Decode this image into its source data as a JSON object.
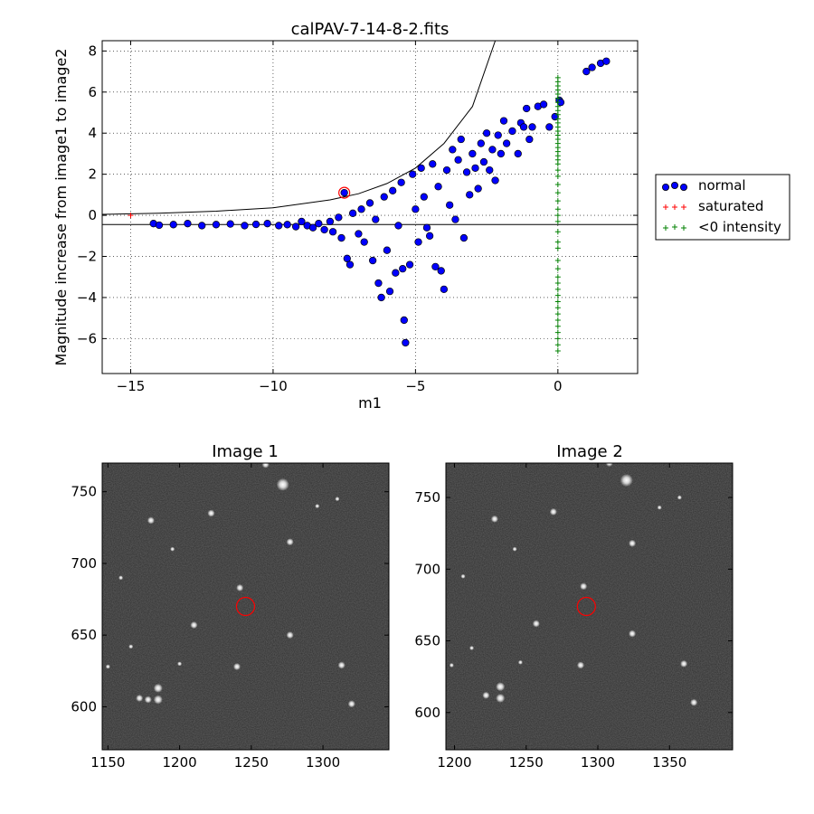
{
  "chart_data": [
    {
      "type": "scatter",
      "title": "calPAV-7-14-8-2.fits",
      "xlabel": "m1",
      "ylabel": "Magnitude increase from image1 to image2",
      "xlim": [
        -16,
        2.8
      ],
      "ylim": [
        -7.7,
        8.5
      ],
      "xticks": [
        -15,
        -10,
        -5,
        0
      ],
      "xtick_labels": [
        "−15",
        "−10",
        "−5",
        "0"
      ],
      "yticks": [
        -6,
        -4,
        -2,
        0,
        2,
        4,
        6,
        8
      ],
      "ytick_labels": [
        "−6",
        "−4",
        "−2",
        "0",
        "2",
        "4",
        "6",
        "8"
      ],
      "grid": true,
      "legend": {
        "placement": "outside-right",
        "entries": [
          "normal",
          "saturated",
          "<0 intensity"
        ]
      },
      "colors": {
        "normal": "#0000ff",
        "saturated": "#ff0000",
        "negative": "#008000",
        "highlight": "#ff0000"
      },
      "reference_lines": {
        "horizontal_y": -0.45,
        "curve_points": [
          [
            -16,
            0.05
          ],
          [
            -14,
            0.1
          ],
          [
            -12,
            0.2
          ],
          [
            -10,
            0.37
          ],
          [
            -8,
            0.75
          ],
          [
            -7,
            1.05
          ],
          [
            -6,
            1.55
          ],
          [
            -5,
            2.3
          ],
          [
            -4,
            3.5
          ],
          [
            -3,
            5.3
          ],
          [
            -2.2,
            8.5
          ]
        ]
      },
      "series": [
        {
          "name": "normal",
          "marker": "circle",
          "points": [
            [
              -14.2,
              -0.4
            ],
            [
              -14.0,
              -0.48
            ],
            [
              -13.5,
              -0.45
            ],
            [
              -13.0,
              -0.4
            ],
            [
              -12.5,
              -0.5
            ],
            [
              -12.0,
              -0.45
            ],
            [
              -11.5,
              -0.42
            ],
            [
              -11.0,
              -0.5
            ],
            [
              -10.6,
              -0.44
            ],
            [
              -10.2,
              -0.4
            ],
            [
              -9.8,
              -0.5
            ],
            [
              -9.5,
              -0.45
            ],
            [
              -9.2,
              -0.55
            ],
            [
              -9.0,
              -0.3
            ],
            [
              -8.8,
              -0.5
            ],
            [
              -8.6,
              -0.6
            ],
            [
              -8.4,
              -0.4
            ],
            [
              -8.2,
              -0.7
            ],
            [
              -8.0,
              -0.3
            ],
            [
              -7.9,
              -0.8
            ],
            [
              -7.7,
              -0.1
            ],
            [
              -7.6,
              -1.1
            ],
            [
              -7.5,
              1.1
            ],
            [
              -7.4,
              -2.1
            ],
            [
              -7.3,
              -2.4
            ],
            [
              -7.2,
              0.1
            ],
            [
              -7.0,
              -0.9
            ],
            [
              -6.9,
              0.3
            ],
            [
              -6.8,
              -1.3
            ],
            [
              -6.6,
              0.6
            ],
            [
              -6.5,
              -2.2
            ],
            [
              -6.4,
              -0.2
            ],
            [
              -6.3,
              -3.3
            ],
            [
              -6.2,
              -4.0
            ],
            [
              -6.1,
              0.9
            ],
            [
              -6.0,
              -1.7
            ],
            [
              -5.9,
              -3.7
            ],
            [
              -5.8,
              1.2
            ],
            [
              -5.7,
              -2.8
            ],
            [
              -5.6,
              -0.5
            ],
            [
              -5.5,
              1.6
            ],
            [
              -5.45,
              -2.6
            ],
            [
              -5.4,
              -5.1
            ],
            [
              -5.35,
              -6.2
            ],
            [
              -5.2,
              -2.4
            ],
            [
              -5.1,
              2.0
            ],
            [
              -5.0,
              0.3
            ],
            [
              -4.9,
              -1.3
            ],
            [
              -4.8,
              2.3
            ],
            [
              -4.7,
              0.9
            ],
            [
              -4.6,
              -0.6
            ],
            [
              -4.5,
              -1.0
            ],
            [
              -4.4,
              2.5
            ],
            [
              -4.3,
              -2.5
            ],
            [
              -4.2,
              1.4
            ],
            [
              -4.0,
              -3.6
            ],
            [
              -4.1,
              -2.7
            ],
            [
              -3.9,
              2.2
            ],
            [
              -3.8,
              0.5
            ],
            [
              -3.7,
              3.2
            ],
            [
              -3.6,
              -0.2
            ],
            [
              -3.5,
              2.7
            ],
            [
              -3.4,
              3.7
            ],
            [
              -3.3,
              -1.1
            ],
            [
              -3.2,
              2.1
            ],
            [
              -3.1,
              1.0
            ],
            [
              -3.0,
              3.0
            ],
            [
              -2.9,
              2.3
            ],
            [
              -2.8,
              1.3
            ],
            [
              -2.7,
              3.5
            ],
            [
              -2.6,
              2.6
            ],
            [
              -2.5,
              4.0
            ],
            [
              -2.4,
              2.2
            ],
            [
              -2.3,
              3.2
            ],
            [
              -2.2,
              1.7
            ],
            [
              -2.1,
              3.9
            ],
            [
              -2.0,
              3.0
            ],
            [
              -1.9,
              4.6
            ],
            [
              -1.8,
              3.5
            ],
            [
              -1.6,
              4.1
            ],
            [
              -1.4,
              3.0
            ],
            [
              -1.3,
              4.5
            ],
            [
              -1.2,
              4.3
            ],
            [
              -1.1,
              5.2
            ],
            [
              -1.0,
              3.7
            ],
            [
              -0.9,
              4.3
            ],
            [
              -0.7,
              5.3
            ],
            [
              -0.5,
              5.4
            ],
            [
              -0.3,
              4.3
            ],
            [
              -0.1,
              4.8
            ],
            [
              0.05,
              5.6
            ],
            [
              0.1,
              5.5
            ],
            [
              1.0,
              7.0
            ],
            [
              1.2,
              7.2
            ],
            [
              1.5,
              7.4
            ],
            [
              1.7,
              7.5
            ]
          ]
        },
        {
          "name": "saturated",
          "marker": "plus",
          "points": [
            [
              -15.0,
              0.0
            ]
          ]
        },
        {
          "name": "<0 intensity",
          "marker": "plus",
          "x_value": 0,
          "y_values": [
            6.7,
            6.5,
            6.3,
            6.1,
            5.9,
            5.7,
            5.5,
            5.3,
            5.1,
            4.9,
            4.7,
            4.5,
            4.3,
            4.1,
            3.9,
            3.7,
            3.5,
            3.3,
            3.1,
            2.9,
            2.7,
            2.5,
            2.2,
            1.9,
            1.5,
            1.1,
            0.7,
            0.3,
            0.0,
            -0.3,
            -0.8,
            -1.3,
            -1.6,
            -2.2,
            -2.6,
            -3.0,
            -3.3,
            -3.6,
            -3.9,
            -4.2,
            -4.5,
            -4.8,
            -5.1,
            -5.4,
            -5.7,
            -6.0,
            -6.3,
            -6.6
          ]
        }
      ],
      "highlight": {
        "x": -7.5,
        "y": 1.1
      }
    },
    {
      "type": "image",
      "title": "Image 1",
      "xlim": [
        1146,
        1346
      ],
      "ylim": [
        570,
        770
      ],
      "xticks": [
        1150,
        1200,
        1250,
        1300
      ],
      "yticks": [
        600,
        650,
        700,
        750
      ],
      "stars": [
        [
          1272,
          755,
          4
        ],
        [
          1180,
          730,
          2
        ],
        [
          1222,
          735,
          2
        ],
        [
          1185,
          613,
          3
        ],
        [
          1185,
          605,
          3
        ],
        [
          1242,
          683,
          2
        ],
        [
          1277,
          715,
          2
        ],
        [
          1210,
          657,
          2
        ],
        [
          1277,
          650,
          2
        ],
        [
          1240,
          628,
          2
        ],
        [
          1172,
          606,
          2
        ],
        [
          1260,
          769,
          2
        ],
        [
          1313,
          629,
          2
        ],
        [
          1320,
          602,
          2
        ],
        [
          1178,
          605,
          2
        ],
        [
          1166,
          642,
          1
        ],
        [
          1200,
          630,
          1
        ],
        [
          1150,
          628,
          1
        ],
        [
          1296,
          740,
          1
        ],
        [
          1310,
          745,
          1
        ],
        [
          1159,
          690,
          1
        ],
        [
          1195,
          710,
          1
        ]
      ],
      "highlight": {
        "x": 1246,
        "y": 670
      }
    },
    {
      "type": "image",
      "title": "Image 2",
      "xlim": [
        1194,
        1394
      ],
      "ylim": [
        574,
        774
      ],
      "xticks": [
        1200,
        1250,
        1300,
        1350
      ],
      "yticks": [
        600,
        650,
        700,
        750
      ],
      "stars": [
        [
          1320,
          762,
          4
        ],
        [
          1228,
          735,
          2
        ],
        [
          1269,
          740,
          2
        ],
        [
          1232,
          618,
          3
        ],
        [
          1232,
          610,
          3
        ],
        [
          1290,
          688,
          2
        ],
        [
          1324,
          718,
          2
        ],
        [
          1257,
          662,
          2
        ],
        [
          1324,
          655,
          2
        ],
        [
          1288,
          633,
          2
        ],
        [
          1222,
          612,
          2
        ],
        [
          1308,
          774,
          2
        ],
        [
          1360,
          634,
          2
        ],
        [
          1367,
          607,
          2
        ],
        [
          1212,
          645,
          1
        ],
        [
          1246,
          635,
          1
        ],
        [
          1198,
          633,
          1
        ],
        [
          1343,
          743,
          1
        ],
        [
          1357,
          750,
          1
        ],
        [
          1206,
          695,
          1
        ],
        [
          1242,
          714,
          1
        ]
      ],
      "highlight": {
        "x": 1292,
        "y": 674
      }
    }
  ]
}
